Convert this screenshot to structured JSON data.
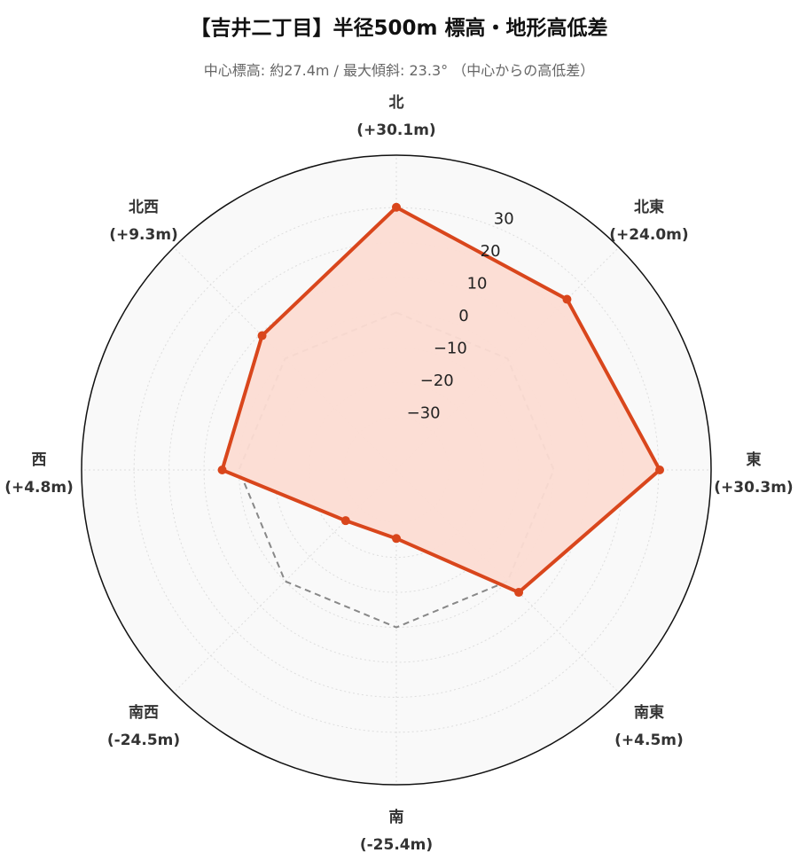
{
  "title": "【吉井二丁目】半径500m 標高・地形高低差",
  "subtitle": "中心標高: 約27.4m / 最大傾斜: 23.3° （中心からの高低差）",
  "chart_data": {
    "type": "radar",
    "directions": [
      "北",
      "北東",
      "東",
      "南東",
      "南",
      "南西",
      "西",
      "北西"
    ],
    "value_labels": [
      "(+30.1m)",
      "(+24.0m)",
      "(+30.3m)",
      "(+4.5m)",
      "(-25.4m)",
      "(-24.5m)",
      "(+4.8m)",
      "(+9.3m)"
    ],
    "series": [
      {
        "values": [
          30.1,
          24.0,
          30.3,
          4.5,
          -25.4,
          -24.5,
          4.8,
          9.3
        ],
        "color": "#d9461c",
        "fill": "#fcdcd3"
      }
    ],
    "reference_level": 0,
    "reference_color": "#888888",
    "rlim": [
      -45,
      45
    ],
    "ticks": [
      -30,
      -20,
      -10,
      0,
      10,
      20,
      30
    ],
    "tick_labels": [
      "−30",
      "−20",
      "−10",
      "0",
      "10",
      "20",
      "30"
    ],
    "grid": true,
    "background": "#f9f9f9"
  }
}
